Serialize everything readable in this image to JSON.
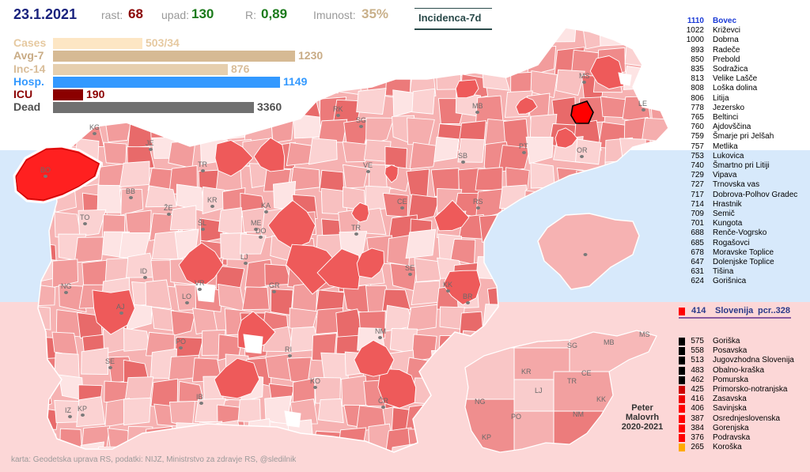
{
  "header": {
    "date": "23.1.2021",
    "rast_label": "rast:",
    "rast_value": "68",
    "upad_label": "upad:",
    "upad_value": "130",
    "r_label": "R:",
    "r_value": "0,89",
    "imunost_label": "Imunost:",
    "imunost_value": "35%",
    "mode_button": "Incidenca-7d"
  },
  "stats": [
    {
      "label": "Cases",
      "value": "503/34",
      "fraction": 0.24,
      "color": "#fde6c4",
      "label_color": "#e6c9a0"
    },
    {
      "label": "Avg-7",
      "value": "1230",
      "fraction": 0.65,
      "color": "#d6ba94",
      "label_color": "#c9ac86"
    },
    {
      "label": "Inc-14",
      "value": "876",
      "fraction": 0.47,
      "color": "#e6cfae",
      "label_color": "#d9bd99"
    },
    {
      "label": "Hosp.",
      "value": "1149",
      "fraction": 0.61,
      "color": "#3399ff",
      "label_color": "#3399ff"
    },
    {
      "label": "ICU",
      "value": "190",
      "fraction": 0.08,
      "color": "#8b0000",
      "label_color": "#8b0000"
    },
    {
      "label": "Dead",
      "value": "3360",
      "fraction": 0.54,
      "color": "#707070",
      "label_color": "#505050"
    }
  ],
  "ranking": [
    {
      "value": "1110",
      "name": "Bovec",
      "highlight": true
    },
    {
      "value": "1022",
      "name": "Križevci"
    },
    {
      "value": "1000",
      "name": "Dobrna"
    },
    {
      "value": "893",
      "name": "Radeče"
    },
    {
      "value": "850",
      "name": "Prebold"
    },
    {
      "value": "835",
      "name": "Sodražica"
    },
    {
      "value": "813",
      "name": "Velike Lašče"
    },
    {
      "value": "808",
      "name": "Loška dolina"
    },
    {
      "value": "806",
      "name": "Litija"
    },
    {
      "value": "778",
      "name": "Jezersko"
    },
    {
      "value": "765",
      "name": "Beltinci"
    },
    {
      "value": "760",
      "name": "Ajdovščina"
    },
    {
      "value": "759",
      "name": "Šmarje pri Jelšah"
    },
    {
      "value": "757",
      "name": "Metlika"
    },
    {
      "value": "753",
      "name": "Lukovica"
    },
    {
      "value": "740",
      "name": "Šmartno pri Litiji"
    },
    {
      "value": "729",
      "name": "Vipava"
    },
    {
      "value": "727",
      "name": "Trnovska vas"
    },
    {
      "value": "717",
      "name": "Dobrova-Polhov Gradec"
    },
    {
      "value": "714",
      "name": "Hrastnik"
    },
    {
      "value": "709",
      "name": "Semič"
    },
    {
      "value": "701",
      "name": "Kungota"
    },
    {
      "value": "688",
      "name": "Renče-Vogrsko"
    },
    {
      "value": "685",
      "name": "Rogašovci"
    },
    {
      "value": "678",
      "name": "Moravske Toplice"
    },
    {
      "value": "647",
      "name": "Dolenjske Toplice"
    },
    {
      "value": "631",
      "name": "Tišina"
    },
    {
      "value": "624",
      "name": "Gorišnica"
    }
  ],
  "slovenia": {
    "value": "414",
    "name": "Slovenija",
    "extra": "pcr..328",
    "color": "#ff0000"
  },
  "regions": [
    {
      "value": "575",
      "name": "Goriška",
      "color": "#000000"
    },
    {
      "value": "558",
      "name": "Posavska",
      "color": "#000000"
    },
    {
      "value": "513",
      "name": "Jugovzhodna Slovenija",
      "color": "#000000"
    },
    {
      "value": "483",
      "name": "Obalno-kraška",
      "color": "#000000"
    },
    {
      "value": "462",
      "name": "Pomurska",
      "color": "#000000"
    },
    {
      "value": "425",
      "name": "Primorsko-notranjska",
      "color": "#cc0000"
    },
    {
      "value": "416",
      "name": "Zasavska",
      "color": "#ee0000"
    },
    {
      "value": "406",
      "name": "Savinjska",
      "color": "#ff0000"
    },
    {
      "value": "387",
      "name": "Osrednjeslovenska",
      "color": "#ff0000"
    },
    {
      "value": "384",
      "name": "Gorenjska",
      "color": "#ff0000"
    },
    {
      "value": "376",
      "name": "Podravska",
      "color": "#ff0000"
    },
    {
      "value": "265",
      "name": "Koroška",
      "color": "#ffaa00"
    }
  ],
  "map_labels": [
    "KG",
    "JE",
    "BO",
    "TR",
    "BB",
    "KR",
    "ŽE",
    "ŠL",
    "TO",
    "KA",
    "ME",
    "DO",
    "RK",
    "SG",
    "MB",
    "MS",
    "LE",
    "PT",
    "OR",
    "VE",
    "SB",
    "CE",
    "RS",
    "TR",
    "LJ",
    "ID",
    "VR",
    "NG",
    "AJ",
    "LO",
    "GR",
    "SE",
    "KK",
    "BR",
    "NM",
    "PO",
    "RI",
    "SE",
    "KO",
    "IB",
    "ČR",
    "IZ",
    "KP"
  ],
  "small_map_labels": [
    "SG",
    "MB",
    "MS",
    "KR",
    "TR",
    "CE",
    "LJ",
    "KK",
    "NG",
    "PO",
    "NM",
    "KP"
  ],
  "author": {
    "line1": "Peter",
    "line2": "Malovrh",
    "line3": "2020-2021"
  },
  "footer": "karta: Geodetska uprava RS,  podatki: NIJZ, Ministrstvo za zdravje RS, @sledilnik",
  "colors": {
    "sky": "#d7e9fb",
    "pink": "#fcd7d7"
  }
}
